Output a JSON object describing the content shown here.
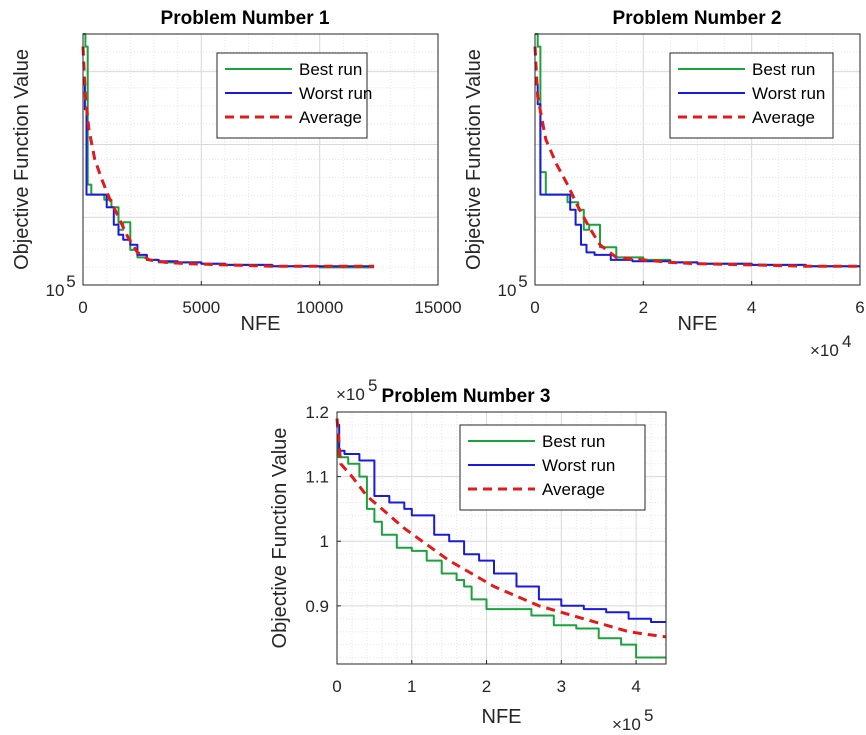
{
  "chart_data": [
    {
      "type": "line",
      "title": "Problem Number 1",
      "xlabel": "NFE",
      "ylabel": "Objective Function Value",
      "xlim": [
        0,
        15000
      ],
      "xticks": [
        "0",
        "5000",
        "10000",
        "15000"
      ],
      "y_scale": "log",
      "ytick_base": "10",
      "ytick_exponent": "5",
      "grid": true,
      "legend_position": "top-right",
      "series": [
        {
          "name": "Best run",
          "color": "#1aa23c",
          "style": "solid",
          "x": [
            0,
            100,
            200,
            350,
            600,
            900,
            1200,
            1500,
            1700,
            2000,
            2300,
            2700,
            3200,
            4000,
            5000,
            6000,
            8000,
            10000,
            12300
          ],
          "y": [
            1.0,
            0.95,
            0.4,
            0.36,
            0.36,
            0.34,
            0.31,
            0.22,
            0.25,
            0.14,
            0.11,
            0.1,
            0.09,
            0.09,
            0.085,
            0.08,
            0.075,
            0.07,
            0.07
          ]
        },
        {
          "name": "Worst run",
          "color": "#1a1adc",
          "style": "solid",
          "x": [
            0,
            80,
            150,
            250,
            400,
            700,
            1000,
            1300,
            1500,
            1700,
            2000,
            2300,
            2700,
            3200,
            4000,
            5000,
            6000,
            8000,
            10000,
            12300
          ],
          "y": [
            0.8,
            0.7,
            0.36,
            0.36,
            0.36,
            0.36,
            0.31,
            0.24,
            0.2,
            0.18,
            0.16,
            0.12,
            0.1,
            0.095,
            0.09,
            0.085,
            0.08,
            0.075,
            0.075,
            0.075
          ]
        },
        {
          "name": "Average",
          "color": "#e21a1a",
          "style": "dashed",
          "x": [
            0,
            100,
            250,
            500,
            800,
            1100,
            1500,
            1900,
            2300,
            2800,
            3500,
            4500,
            6000,
            8000,
            10000,
            12300
          ],
          "y": [
            0.95,
            0.75,
            0.62,
            0.5,
            0.42,
            0.35,
            0.27,
            0.19,
            0.13,
            0.1,
            0.09,
            0.085,
            0.08,
            0.075,
            0.075,
            0.075
          ]
        }
      ]
    },
    {
      "type": "line",
      "title": "Problem Number 2",
      "xlabel": "NFE",
      "ylabel": "Objective Function Value",
      "xlim": [
        0,
        6
      ],
      "x_multiplier_base": "×10",
      "x_multiplier_exponent": "4",
      "xticks": [
        "0",
        "2",
        "4",
        "6"
      ],
      "y_scale": "log",
      "ytick_base": "10",
      "ytick_exponent": "5",
      "grid": true,
      "legend_position": "top-right",
      "series": [
        {
          "name": "Best run",
          "color": "#1aa23c",
          "style": "solid",
          "x": [
            0,
            0.05,
            0.1,
            0.2,
            0.4,
            0.6,
            0.8,
            0.9,
            1.0,
            1.2,
            1.5,
            2.0,
            2.5,
            3.0,
            4.0,
            5.0,
            6.0
          ],
          "y": [
            1.0,
            0.95,
            0.45,
            0.36,
            0.36,
            0.33,
            0.3,
            0.22,
            0.24,
            0.15,
            0.11,
            0.1,
            0.09,
            0.085,
            0.08,
            0.075,
            0.075
          ]
        },
        {
          "name": "Worst run",
          "color": "#1a1adc",
          "style": "solid",
          "x": [
            0,
            0.05,
            0.1,
            0.25,
            0.45,
            0.65,
            0.75,
            0.85,
            0.95,
            1.1,
            1.4,
            1.8,
            2.5,
            3.0,
            4.0,
            5.0,
            6.0
          ],
          "y": [
            0.8,
            0.72,
            0.36,
            0.36,
            0.36,
            0.3,
            0.24,
            0.16,
            0.13,
            0.12,
            0.1,
            0.095,
            0.09,
            0.085,
            0.08,
            0.075,
            0.075
          ]
        },
        {
          "name": "Average",
          "color": "#e21a1a",
          "style": "dashed",
          "x": [
            0,
            0.05,
            0.2,
            0.4,
            0.6,
            0.8,
            1.0,
            1.2,
            1.5,
            2.0,
            2.5,
            3.0,
            4.0,
            5.0,
            6.0
          ],
          "y": [
            0.95,
            0.75,
            0.58,
            0.48,
            0.4,
            0.31,
            0.23,
            0.16,
            0.11,
            0.1,
            0.09,
            0.085,
            0.08,
            0.075,
            0.075
          ]
        }
      ]
    },
    {
      "type": "line",
      "title": "Problem Number 3",
      "xlabel": "NFE",
      "ylabel": "Objective Function Value",
      "xlim": [
        0,
        4.4
      ],
      "ylim": [
        0.81,
        1.2
      ],
      "x_multiplier_base": "×10",
      "x_multiplier_exponent": "5",
      "y_multiplier_base": "×10",
      "y_multiplier_exponent": "5",
      "xticks": [
        "0",
        "1",
        "2",
        "3",
        "4"
      ],
      "yticks": [
        "0.9",
        "1",
        "1.1",
        "1.2"
      ],
      "grid": true,
      "legend_position": "top-right",
      "series": [
        {
          "name": "Best run",
          "color": "#1aa23c",
          "style": "solid",
          "x": [
            0,
            0.02,
            0.05,
            0.15,
            0.3,
            0.4,
            0.5,
            0.6,
            0.8,
            1.0,
            1.2,
            1.4,
            1.6,
            1.7,
            1.8,
            2.0,
            2.3,
            2.6,
            2.9,
            3.2,
            3.5,
            3.8,
            4.0,
            4.4
          ],
          "y": [
            1.16,
            1.13,
            1.13,
            1.12,
            1.1,
            1.05,
            1.03,
            1.01,
            0.99,
            0.985,
            0.97,
            0.95,
            0.94,
            0.93,
            0.91,
            0.895,
            0.895,
            0.885,
            0.87,
            0.865,
            0.85,
            0.84,
            0.82,
            0.82
          ]
        },
        {
          "name": "Worst run",
          "color": "#1a1adc",
          "style": "solid",
          "x": [
            0,
            0.03,
            0.1,
            0.3,
            0.5,
            0.7,
            0.9,
            1.0,
            1.3,
            1.5,
            1.7,
            1.9,
            2.1,
            2.4,
            2.7,
            3.0,
            3.3,
            3.6,
            3.9,
            4.2,
            4.4
          ],
          "y": [
            1.18,
            1.14,
            1.135,
            1.125,
            1.07,
            1.06,
            1.05,
            1.04,
            1.01,
            1.0,
            0.98,
            0.97,
            0.95,
            0.93,
            0.91,
            0.9,
            0.895,
            0.89,
            0.88,
            0.875,
            0.875
          ]
        },
        {
          "name": "Average",
          "color": "#e21a1a",
          "style": "dashed",
          "x": [
            0,
            0.05,
            0.2,
            0.4,
            0.6,
            0.9,
            1.2,
            1.5,
            1.8,
            2.1,
            2.4,
            2.7,
            3.0,
            3.3,
            3.6,
            3.9,
            4.2,
            4.4
          ],
          "y": [
            1.19,
            1.12,
            1.1,
            1.07,
            1.05,
            1.02,
            0.995,
            0.97,
            0.95,
            0.93,
            0.915,
            0.9,
            0.89,
            0.88,
            0.87,
            0.86,
            0.855,
            0.852
          ]
        }
      ]
    }
  ]
}
